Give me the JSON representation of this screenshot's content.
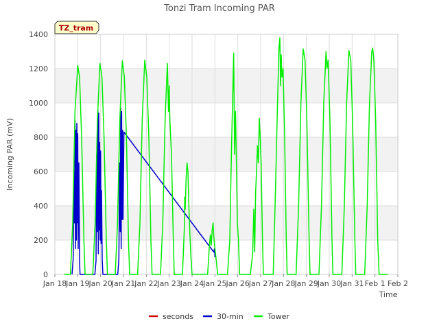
{
  "chart_data": {
    "type": "line",
    "title": "Tonzi Tram Incoming PAR",
    "xlabel": "Time",
    "ylabel": "Incoming PAR (mV)",
    "station_label": "TZ_tram",
    "xlim": [
      18,
      33
    ],
    "ylim": [
      0,
      1400
    ],
    "yticks": [
      0,
      200,
      400,
      600,
      800,
      1000,
      1200,
      1400
    ],
    "xticks": [
      {
        "x": 18,
        "label": "Jan 18"
      },
      {
        "x": 19,
        "label": "Jan 19"
      },
      {
        "x": 20,
        "label": "Jan 20"
      },
      {
        "x": 21,
        "label": "Jan 21"
      },
      {
        "x": 22,
        "label": "Jan 22"
      },
      {
        "x": 23,
        "label": "Jan 23"
      },
      {
        "x": 24,
        "label": "Jan 24"
      },
      {
        "x": 25,
        "label": "Jan 25"
      },
      {
        "x": 26,
        "label": "Jan 26"
      },
      {
        "x": 27,
        "label": "Jan 27"
      },
      {
        "x": 28,
        "label": "Jan 28"
      },
      {
        "x": 29,
        "label": "Jan 29"
      },
      {
        "x": 30,
        "label": "Jan 30"
      },
      {
        "x": 31,
        "label": "Jan 31"
      },
      {
        "x": 32,
        "label": "Feb 1"
      },
      {
        "x": 33,
        "label": "Feb 2"
      }
    ],
    "grid": true,
    "legend_position": "bottom-center",
    "series": [
      {
        "name": "seconds",
        "color": "#cc0000",
        "points": []
      },
      {
        "name": "30-min",
        "color": "#0000cc",
        "points": [
          [
            18.75,
            0
          ],
          [
            18.8,
            90
          ],
          [
            18.83,
            600
          ],
          [
            18.86,
            300
          ],
          [
            18.88,
            900
          ],
          [
            18.9,
            150
          ],
          [
            18.92,
            840
          ],
          [
            18.94,
            200
          ],
          [
            18.96,
            880
          ],
          [
            18.98,
            300
          ],
          [
            19.0,
            820
          ],
          [
            19.02,
            150
          ],
          [
            19.05,
            650
          ],
          [
            19.08,
            80
          ],
          [
            19.1,
            0
          ],
          [
            19.75,
            0
          ],
          [
            19.8,
            80
          ],
          [
            19.83,
            700
          ],
          [
            19.86,
            250
          ],
          [
            19.88,
            960
          ],
          [
            19.9,
            120
          ],
          [
            19.92,
            940
          ],
          [
            19.94,
            260
          ],
          [
            19.96,
            770
          ],
          [
            19.98,
            200
          ],
          [
            20.0,
            720
          ],
          [
            20.02,
            180
          ],
          [
            20.04,
            490
          ],
          [
            20.07,
            90
          ],
          [
            20.1,
            0
          ],
          [
            20.75,
            0
          ],
          [
            20.8,
            90
          ],
          [
            20.83,
            650
          ],
          [
            20.86,
            250
          ],
          [
            20.88,
            970
          ],
          [
            20.9,
            150
          ],
          [
            20.92,
            950
          ],
          [
            20.94,
            320
          ],
          [
            20.96,
            840
          ],
          [
            20.98,
            320
          ],
          [
            21.02,
            830
          ],
          [
            24.95,
            130
          ],
          [
            24.98,
            150
          ],
          [
            25.0,
            100
          ]
        ]
      },
      {
        "name": "Tower",
        "color": "#00ee00",
        "points": [
          [
            18.4,
            0
          ],
          [
            18.68,
            0
          ],
          [
            18.78,
            300
          ],
          [
            18.88,
            950
          ],
          [
            19.0,
            1218
          ],
          [
            19.08,
            1150
          ],
          [
            19.17,
            800
          ],
          [
            19.27,
            200
          ],
          [
            19.32,
            0
          ],
          [
            19.66,
            0
          ],
          [
            19.76,
            300
          ],
          [
            19.86,
            900
          ],
          [
            19.97,
            1230
          ],
          [
            20.06,
            1150
          ],
          [
            20.15,
            800
          ],
          [
            20.25,
            200
          ],
          [
            20.3,
            0
          ],
          [
            20.64,
            0
          ],
          [
            20.74,
            300
          ],
          [
            20.84,
            900
          ],
          [
            20.95,
            1245
          ],
          [
            21.04,
            1150
          ],
          [
            21.13,
            800
          ],
          [
            21.22,
            200
          ],
          [
            21.27,
            0
          ],
          [
            21.62,
            0
          ],
          [
            21.72,
            300
          ],
          [
            21.82,
            900
          ],
          [
            21.93,
            1250
          ],
          [
            22.02,
            1150
          ],
          [
            22.11,
            800
          ],
          [
            22.2,
            200
          ],
          [
            22.25,
            0
          ],
          [
            22.62,
            0
          ],
          [
            22.72,
            300
          ],
          [
            22.82,
            900
          ],
          [
            22.92,
            1230
          ],
          [
            22.97,
            950
          ],
          [
            23.0,
            1100
          ],
          [
            23.03,
            900
          ],
          [
            23.1,
            700
          ],
          [
            23.18,
            200
          ],
          [
            23.22,
            0
          ],
          [
            23.58,
            0
          ],
          [
            23.66,
            260
          ],
          [
            23.68,
            450
          ],
          [
            23.7,
            380
          ],
          [
            23.74,
            560
          ],
          [
            23.78,
            650
          ],
          [
            23.82,
            600
          ],
          [
            23.86,
            400
          ],
          [
            23.9,
            250
          ],
          [
            23.95,
            100
          ],
          [
            24.0,
            0
          ],
          [
            24.55,
            0
          ],
          [
            24.68,
            0
          ],
          [
            24.75,
            150
          ],
          [
            24.8,
            230
          ],
          [
            24.84,
            170
          ],
          [
            24.88,
            260
          ],
          [
            24.92,
            300
          ],
          [
            24.95,
            220
          ],
          [
            25.0,
            150
          ],
          [
            25.06,
            80
          ],
          [
            25.12,
            0
          ],
          [
            25.55,
            0
          ],
          [
            25.65,
            200
          ],
          [
            25.72,
            700
          ],
          [
            25.82,
            1290
          ],
          [
            25.86,
            700
          ],
          [
            25.9,
            950
          ],
          [
            25.94,
            650
          ],
          [
            25.98,
            300
          ],
          [
            26.03,
            200
          ],
          [
            26.08,
            0
          ],
          [
            26.55,
            0
          ],
          [
            26.65,
            120
          ],
          [
            26.7,
            380
          ],
          [
            26.74,
            130
          ],
          [
            26.78,
            480
          ],
          [
            26.82,
            600
          ],
          [
            26.86,
            750
          ],
          [
            26.9,
            650
          ],
          [
            26.94,
            910
          ],
          [
            26.98,
            800
          ],
          [
            27.02,
            650
          ],
          [
            27.08,
            200
          ],
          [
            27.12,
            0
          ],
          [
            27.55,
            0
          ],
          [
            27.65,
            500
          ],
          [
            27.72,
            900
          ],
          [
            27.8,
            1320
          ],
          [
            27.84,
            1380
          ],
          [
            27.87,
            1100
          ],
          [
            27.9,
            1280
          ],
          [
            27.93,
            1150
          ],
          [
            27.98,
            1200
          ],
          [
            28.05,
            800
          ],
          [
            28.12,
            200
          ],
          [
            28.16,
            0
          ],
          [
            28.55,
            0
          ],
          [
            28.66,
            400
          ],
          [
            28.76,
            1000
          ],
          [
            28.86,
            1315
          ],
          [
            28.94,
            1250
          ],
          [
            29.02,
            900
          ],
          [
            29.12,
            200
          ],
          [
            29.16,
            0
          ],
          [
            29.55,
            0
          ],
          [
            29.66,
            400
          ],
          [
            29.76,
            1000
          ],
          [
            29.86,
            1300
          ],
          [
            29.9,
            1200
          ],
          [
            29.95,
            1250
          ],
          [
            30.03,
            900
          ],
          [
            30.12,
            200
          ],
          [
            30.16,
            0
          ],
          [
            30.55,
            0
          ],
          [
            30.66,
            400
          ],
          [
            30.76,
            1000
          ],
          [
            30.86,
            1305
          ],
          [
            30.94,
            1250
          ],
          [
            31.02,
            900
          ],
          [
            31.12,
            200
          ],
          [
            31.16,
            0
          ],
          [
            31.55,
            0
          ],
          [
            31.66,
            400
          ],
          [
            31.76,
            1000
          ],
          [
            31.86,
            1300
          ],
          [
            31.9,
            1320
          ],
          [
            31.95,
            1250
          ],
          [
            32.03,
            900
          ],
          [
            32.12,
            200
          ],
          [
            32.18,
            0
          ],
          [
            32.55,
            0
          ]
        ]
      }
    ]
  }
}
